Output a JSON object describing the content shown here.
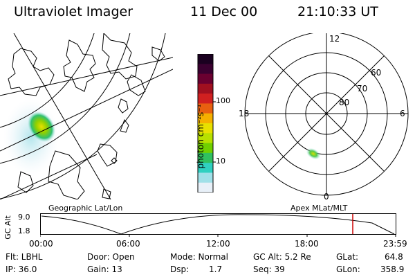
{
  "header": {
    "instrument": "Ultraviolet Imager",
    "date": "11 Dec 00",
    "time": "21:10:33 UT"
  },
  "colorbar": {
    "unit_label": "photon cm⁻²s⁻¹",
    "ticks": [
      "100",
      "10"
    ],
    "colors": [
      "#1a0020",
      "#3a0030",
      "#6a0030",
      "#a01020",
      "#d02020",
      "#e86010",
      "#f5b000",
      "#e8e000",
      "#b8e000",
      "#70d000",
      "#30c060",
      "#30d0c0",
      "#a0e0e8",
      "#e8f0f8"
    ]
  },
  "polar_plot": {
    "hour_labels": [
      "12",
      "18",
      "6",
      "0"
    ],
    "lat_labels": [
      "60",
      "70",
      "80"
    ]
  },
  "timeline": {
    "left_label": "Geographic Lat/Lon",
    "right_label": "Apex MLat/MLT",
    "axis_title": "GC Alt",
    "y_ticks": [
      "9.0",
      "1.8"
    ],
    "x_ticks": [
      "00:00",
      "06:00",
      "12:00",
      "18:00",
      "23:59"
    ],
    "marker_time": "21:10",
    "marker_color": "#cc0000"
  },
  "info": {
    "flt": "Flt: LBHL",
    "ip": "IP: 36.0",
    "door": "Door: Open",
    "gain": "Gain: 13",
    "mode": "Mode: Normal",
    "dsp_label": "Dsp:",
    "dsp_value": "1.7",
    "gc_alt": "GC Alt: 5.2 Re",
    "seq": "Seq: 39",
    "glat": "GLat:",
    "glat_value": "64.8",
    "glon": "GLon:",
    "glon_value": "358.9"
  }
}
